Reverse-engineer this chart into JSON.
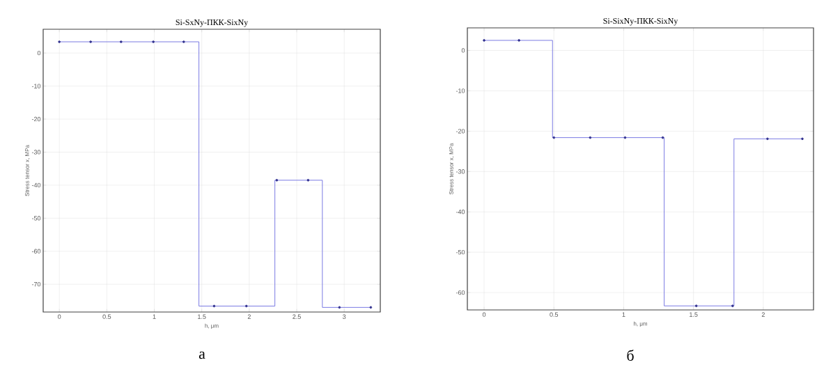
{
  "chart_data": [
    {
      "type": "line",
      "title": "Si-SxNy-ПКК-SixNy",
      "xlabel": "h, μm",
      "ylabel": "Stress tensor x, MPa",
      "annotations": [
        "а"
      ],
      "xlim": [
        -0.17,
        3.38
      ],
      "ylim": [
        -78.4,
        7.2
      ],
      "xticks": [
        0,
        0.5,
        1,
        1.5,
        2,
        2.5,
        3
      ],
      "yticks": [
        -70,
        -60,
        -50,
        -40,
        -30,
        -20,
        -10,
        0
      ],
      "grid": true,
      "series": [
        {
          "type": "line",
          "color": "#6b6be0",
          "marker": "none",
          "x": [
            0,
            1.47,
            1.47,
            2.27,
            2.27,
            2.77,
            2.77,
            3.28
          ],
          "values": [
            3.4,
            3.4,
            -76.6,
            -76.6,
            -38.5,
            -38.5,
            -77,
            -77
          ]
        },
        {
          "type": "scatter",
          "color": "#33338f",
          "marker": "circle",
          "x": [
            0,
            0.33,
            0.65,
            0.99,
            1.31,
            1.63,
            1.97,
            2.29,
            2.62,
            2.95,
            3.28
          ],
          "values": [
            3.4,
            3.4,
            3.4,
            3.4,
            3.4,
            -76.6,
            -76.6,
            -38.5,
            -38.5,
            -77,
            -77
          ]
        }
      ]
    },
    {
      "type": "line",
      "title": "Si-SixNy-ПКК-SixNy",
      "xlabel": "h, μm",
      "ylabel": "Stress tensor x, MPa",
      "annotations": [
        "б"
      ],
      "xlim": [
        -0.12,
        2.36
      ],
      "ylim": [
        -64.3,
        5.6
      ],
      "xticks": [
        0,
        0.5,
        1,
        1.5,
        2
      ],
      "yticks": [
        -60,
        -50,
        -40,
        -30,
        -20,
        -10,
        0
      ],
      "grid": true,
      "series": [
        {
          "type": "line",
          "color": "#6b6be0",
          "marker": "none",
          "x": [
            0,
            0.49,
            0.49,
            1.29,
            1.29,
            1.79,
            1.79,
            2.28
          ],
          "values": [
            2.5,
            2.5,
            -21.6,
            -21.6,
            -63.3,
            -63.3,
            -21.9,
            -21.9
          ]
        },
        {
          "type": "scatter",
          "color": "#33338f",
          "marker": "circle",
          "x": [
            0,
            0.25,
            0.5,
            0.76,
            1.01,
            1.28,
            1.52,
            1.78,
            2.03,
            2.28
          ],
          "values": [
            2.5,
            2.5,
            -21.6,
            -21.6,
            -21.6,
            -21.6,
            -63.3,
            -63.3,
            -21.9,
            -21.9
          ]
        }
      ]
    }
  ]
}
